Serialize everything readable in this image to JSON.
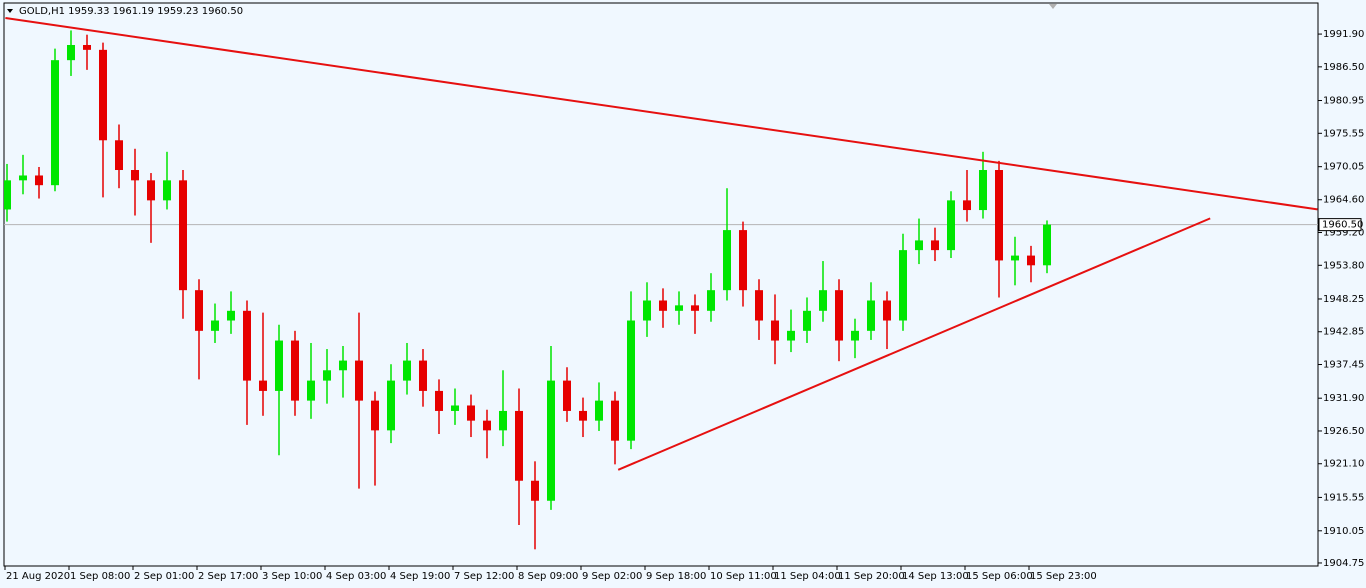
{
  "chart_data": {
    "type": "candlestick",
    "title": "GOLD,H1  1959.33 1961.19 1959.23 1960.50",
    "up_color": "#00e600",
    "down_color": "#e60000",
    "trend_color": "#e61010",
    "ylim": [
      1904.25,
      1997.02
    ],
    "yticks": [
      {
        "value": 1991.9,
        "label": "1991.90"
      },
      {
        "value": 1986.5,
        "label": "1986.50"
      },
      {
        "value": 1980.95,
        "label": "1980.95"
      },
      {
        "value": 1975.55,
        "label": "1975.55"
      },
      {
        "value": 1970.05,
        "label": "1970.05"
      },
      {
        "value": 1964.6,
        "label": "1964.60"
      },
      {
        "value": 1959.2,
        "label": "1959.20"
      },
      {
        "value": 1953.8,
        "label": "1953.80"
      },
      {
        "value": 1948.25,
        "label": "1948.25"
      },
      {
        "value": 1942.85,
        "label": "1942.85"
      },
      {
        "value": 1937.45,
        "label": "1937.45"
      },
      {
        "value": 1931.9,
        "label": "1931.90"
      },
      {
        "value": 1926.5,
        "label": "1926.50"
      },
      {
        "value": 1921.1,
        "label": "1921.10"
      },
      {
        "value": 1915.55,
        "label": "1915.55"
      },
      {
        "value": 1910.05,
        "label": "1910.05"
      },
      {
        "value": 1904.75,
        "label": "1904.75"
      }
    ],
    "last_price": {
      "value": 1960.5,
      "label": "1960.50"
    },
    "categories": [
      "21 Aug 2020",
      null,
      null,
      null,
      "1 Sep 08:00",
      null,
      null,
      null,
      "2 Sep 01:00",
      null,
      null,
      null,
      "2 Sep 17:00",
      null,
      null,
      null,
      "3 Sep 10:00",
      null,
      null,
      null,
      "4 Sep 03:00",
      null,
      null,
      null,
      "4 Sep 19:00",
      null,
      null,
      null,
      "7 Sep 12:00",
      null,
      null,
      null,
      "8 Sep 09:00",
      null,
      null,
      null,
      "9 Sep 02:00",
      null,
      null,
      null,
      "9 Sep 18:00",
      null,
      null,
      null,
      "10 Sep 11:00",
      null,
      null,
      null,
      "11 Sep 04:00",
      null,
      null,
      null,
      "11 Sep 20:00",
      null,
      null,
      null,
      "14 Sep 13:00",
      null,
      null,
      null,
      "15 Sep 06:00",
      null,
      null,
      null,
      "15 Sep 23:00",
      null
    ],
    "candles": [
      [
        1963.0,
        1970.5,
        1961.0,
        1967.8
      ],
      [
        1967.8,
        1972.0,
        1965.5,
        1968.6
      ],
      [
        1968.6,
        1970.0,
        1964.8,
        1967.0
      ],
      [
        1967.0,
        1989.5,
        1966.0,
        1987.6
      ],
      [
        1987.6,
        1992.5,
        1985.0,
        1990.1
      ],
      [
        1990.1,
        1991.8,
        1986.0,
        1989.3
      ],
      [
        1989.3,
        1990.5,
        1965.0,
        1974.4
      ],
      [
        1974.4,
        1977.0,
        1966.5,
        1969.5
      ],
      [
        1969.5,
        1973.0,
        1962.0,
        1967.8
      ],
      [
        1967.8,
        1969.0,
        1957.5,
        1964.5
      ],
      [
        1964.5,
        1972.5,
        1963.0,
        1967.8
      ],
      [
        1967.8,
        1969.5,
        1945.0,
        1949.7
      ],
      [
        1949.7,
        1951.5,
        1935.0,
        1943.0
      ],
      [
        1943.0,
        1947.5,
        1941.0,
        1944.7
      ],
      [
        1944.7,
        1949.5,
        1942.5,
        1946.3
      ],
      [
        1946.3,
        1948.0,
        1927.5,
        1934.8
      ],
      [
        1934.8,
        1946.0,
        1929.0,
        1933.1
      ],
      [
        1933.1,
        1944.0,
        1922.5,
        1941.4
      ],
      [
        1941.4,
        1943.0,
        1929.0,
        1931.5
      ],
      [
        1931.5,
        1941.0,
        1928.5,
        1934.8
      ],
      [
        1934.8,
        1940.0,
        1931.0,
        1936.5
      ],
      [
        1936.5,
        1940.5,
        1932.0,
        1938.1
      ],
      [
        1938.1,
        1946.0,
        1917.0,
        1931.5
      ],
      [
        1931.5,
        1933.0,
        1917.5,
        1926.6
      ],
      [
        1926.6,
        1937.5,
        1924.5,
        1934.8
      ],
      [
        1934.8,
        1941.0,
        1932.5,
        1938.1
      ],
      [
        1938.1,
        1940.0,
        1930.5,
        1933.1
      ],
      [
        1933.1,
        1935.0,
        1926.0,
        1929.8
      ],
      [
        1929.8,
        1933.5,
        1927.5,
        1930.7
      ],
      [
        1930.7,
        1932.5,
        1925.5,
        1928.2
      ],
      [
        1928.2,
        1930.0,
        1922.0,
        1926.6
      ],
      [
        1926.6,
        1936.5,
        1924.0,
        1929.8
      ],
      [
        1929.8,
        1933.5,
        1911.0,
        1918.3
      ],
      [
        1918.3,
        1921.5,
        1907.0,
        1915.0
      ],
      [
        1915.0,
        1940.5,
        1913.5,
        1934.8
      ],
      [
        1934.8,
        1937.0,
        1928.0,
        1929.8
      ],
      [
        1929.8,
        1932.0,
        1925.5,
        1928.2
      ],
      [
        1928.2,
        1934.5,
        1926.5,
        1931.5
      ],
      [
        1931.5,
        1933.0,
        1921.0,
        1924.9
      ],
      [
        1924.9,
        1949.5,
        1923.5,
        1944.7
      ],
      [
        1944.7,
        1951.0,
        1942.0,
        1948.0
      ],
      [
        1948.0,
        1950.0,
        1943.5,
        1946.3
      ],
      [
        1946.3,
        1949.5,
        1944.0,
        1947.2
      ],
      [
        1947.2,
        1949.0,
        1942.5,
        1946.3
      ],
      [
        1946.3,
        1952.5,
        1944.5,
        1949.7
      ],
      [
        1949.7,
        1966.5,
        1948.0,
        1959.6
      ],
      [
        1959.6,
        1961.0,
        1947.0,
        1949.7
      ],
      [
        1949.7,
        1951.5,
        1941.5,
        1944.7
      ],
      [
        1944.7,
        1949.0,
        1937.5,
        1941.4
      ],
      [
        1941.4,
        1946.5,
        1939.5,
        1943.0
      ],
      [
        1943.0,
        1948.5,
        1941.0,
        1946.3
      ],
      [
        1946.3,
        1954.5,
        1944.5,
        1949.7
      ],
      [
        1949.7,
        1951.5,
        1938.0,
        1941.4
      ],
      [
        1941.4,
        1945.0,
        1938.5,
        1943.0
      ],
      [
        1943.0,
        1951.0,
        1941.5,
        1948.0
      ],
      [
        1948.0,
        1949.5,
        1940.0,
        1944.7
      ],
      [
        1944.7,
        1959.0,
        1943.0,
        1956.3
      ],
      [
        1956.3,
        1961.5,
        1954.0,
        1957.9
      ],
      [
        1957.9,
        1960.0,
        1954.5,
        1956.3
      ],
      [
        1956.3,
        1966.0,
        1955.0,
        1964.5
      ],
      [
        1964.5,
        1969.5,
        1961.0,
        1962.9
      ],
      [
        1962.9,
        1972.5,
        1961.5,
        1969.5
      ],
      [
        1969.5,
        1971.0,
        1948.5,
        1954.6
      ],
      [
        1954.6,
        1958.5,
        1950.5,
        1955.4
      ],
      [
        1955.4,
        1957.0,
        1951.0,
        1953.8
      ],
      [
        1953.8,
        1961.19,
        1952.5,
        1960.5
      ]
    ],
    "trendlines": [
      [
        [
          -0.1,
          1994.54
        ],
        [
          81.9,
          1963.02
        ]
      ],
      [
        [
          38.2,
          1920.1
        ],
        [
          75.2,
          1961.53
        ]
      ]
    ]
  }
}
